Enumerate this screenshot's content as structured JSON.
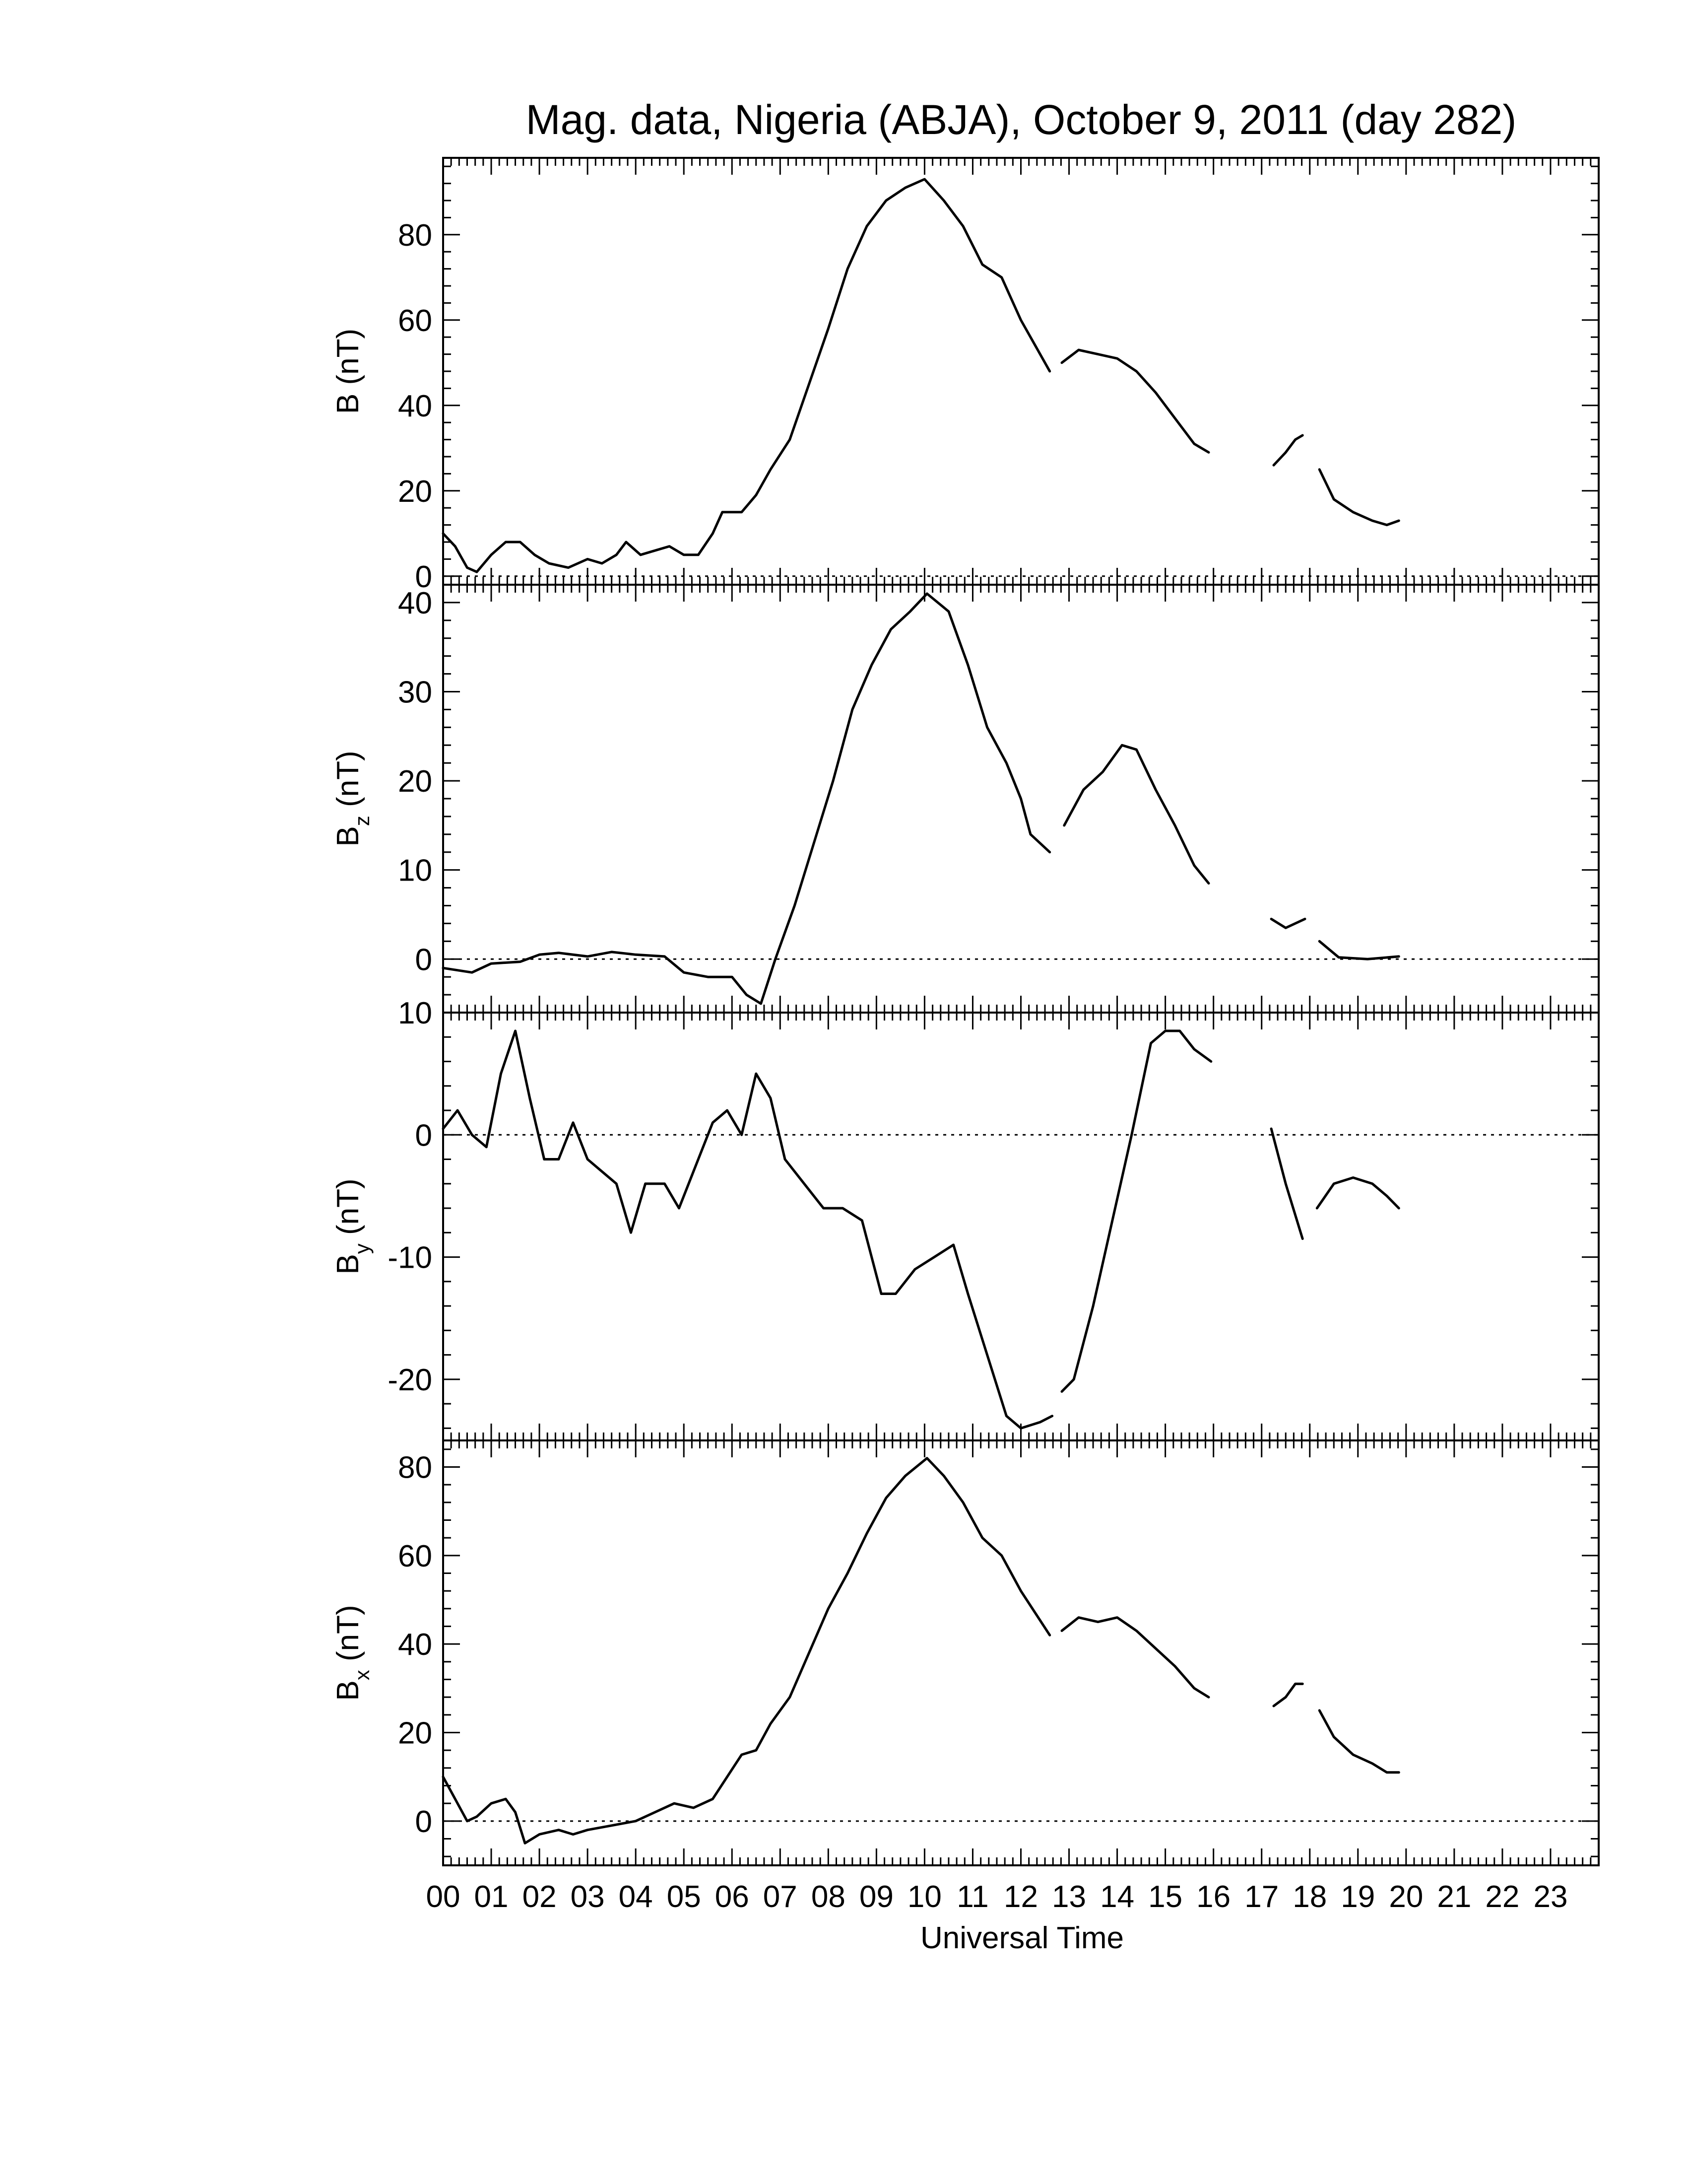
{
  "chart_data": {
    "type": "line",
    "title": "Mag. data, Nigeria (ABJA), October 9, 2011 (day 282)",
    "xlabel": "Universal Time",
    "x_unit": "hours UT",
    "xlim": [
      0,
      24
    ],
    "x_tick_labels": [
      "00",
      "01",
      "02",
      "03",
      "04",
      "05",
      "06",
      "07",
      "08",
      "09",
      "10",
      "11",
      "12",
      "13",
      "14",
      "15",
      "16",
      "17",
      "18",
      "19",
      "20",
      "21",
      "22",
      "23"
    ],
    "panels": [
      {
        "name": "B",
        "ylabel_main": "B",
        "ylabel_sub": "",
        "ylabel_unit": "(nT)",
        "ylim": [
          -2,
          98
        ],
        "yticks": [
          0,
          20,
          40,
          60,
          80
        ],
        "zero_line": true,
        "segments": [
          [
            [
              0,
              10
            ],
            [
              0.25,
              7
            ],
            [
              0.5,
              2
            ],
            [
              0.7,
              1
            ],
            [
              1,
              5
            ],
            [
              1.3,
              8
            ],
            [
              1.6,
              8
            ],
            [
              1.9,
              5
            ],
            [
              2.2,
              3
            ],
            [
              2.6,
              2
            ],
            [
              3,
              4
            ],
            [
              3.3,
              3
            ],
            [
              3.6,
              5
            ],
            [
              3.8,
              8
            ],
            [
              4.1,
              5
            ],
            [
              4.4,
              6
            ],
            [
              4.7,
              7
            ],
            [
              5.0,
              5
            ],
            [
              5.3,
              5
            ],
            [
              5.6,
              10
            ],
            [
              5.8,
              15
            ],
            [
              6.2,
              15
            ],
            [
              6.5,
              19
            ],
            [
              6.8,
              25
            ],
            [
              7.2,
              32
            ],
            [
              7.6,
              45
            ],
            [
              8.0,
              58
            ],
            [
              8.4,
              72
            ],
            [
              8.8,
              82
            ],
            [
              9.2,
              88
            ],
            [
              9.6,
              91
            ],
            [
              10.0,
              93
            ],
            [
              10.4,
              88
            ],
            [
              10.8,
              82
            ],
            [
              11.2,
              73
            ],
            [
              11.6,
              70
            ],
            [
              12.0,
              60
            ],
            [
              12.3,
              54
            ],
            [
              12.6,
              48
            ]
          ],
          [
            [
              12.85,
              50
            ],
            [
              13.2,
              53
            ],
            [
              13.6,
              52
            ],
            [
              14.0,
              51
            ],
            [
              14.4,
              48
            ],
            [
              14.8,
              43
            ],
            [
              15.2,
              37
            ],
            [
              15.6,
              31
            ],
            [
              15.9,
              29
            ]
          ],
          [
            [
              17.25,
              26
            ],
            [
              17.5,
              29
            ],
            [
              17.7,
              32
            ],
            [
              17.85,
              33
            ]
          ],
          [
            [
              18.2,
              25
            ],
            [
              18.5,
              18
            ],
            [
              18.9,
              15
            ],
            [
              19.3,
              13
            ],
            [
              19.6,
              12
            ],
            [
              19.85,
              13
            ]
          ]
        ]
      },
      {
        "name": "Bz",
        "ylabel_main": "B",
        "ylabel_sub": "z",
        "ylabel_unit": "(nT)",
        "ylim": [
          -6,
          42
        ],
        "yticks": [
          0,
          10,
          20,
          30,
          40
        ],
        "zero_line": true,
        "segments": [
          [
            [
              0,
              -1
            ],
            [
              0.6,
              -1.5
            ],
            [
              1.0,
              -0.5
            ],
            [
              1.6,
              -0.3
            ],
            [
              2.0,
              0.5
            ],
            [
              2.4,
              0.7
            ],
            [
              3.0,
              0.3
            ],
            [
              3.5,
              0.8
            ],
            [
              4.0,
              0.5
            ],
            [
              4.6,
              0.3
            ],
            [
              5.0,
              -1.5
            ],
            [
              5.5,
              -2
            ],
            [
              6.0,
              -2
            ],
            [
              6.3,
              -4
            ],
            [
              6.6,
              -5
            ],
            [
              6.9,
              0
            ],
            [
              7.3,
              6
            ],
            [
              7.7,
              13
            ],
            [
              8.1,
              20
            ],
            [
              8.5,
              28
            ],
            [
              8.9,
              33
            ],
            [
              9.3,
              37
            ],
            [
              9.7,
              39
            ],
            [
              10.05,
              41
            ],
            [
              10.5,
              39
            ],
            [
              10.9,
              33
            ],
            [
              11.3,
              26
            ],
            [
              11.7,
              22
            ],
            [
              12.0,
              18
            ],
            [
              12.2,
              14
            ],
            [
              12.6,
              12
            ]
          ],
          [
            [
              12.9,
              15
            ],
            [
              13.3,
              19
            ],
            [
              13.7,
              21
            ],
            [
              14.1,
              24
            ],
            [
              14.4,
              23.5
            ],
            [
              14.8,
              19
            ],
            [
              15.2,
              15
            ],
            [
              15.6,
              10.5
            ],
            [
              15.9,
              8.5
            ]
          ],
          [
            [
              17.2,
              4.5
            ],
            [
              17.5,
              3.5
            ],
            [
              17.9,
              4.5
            ]
          ],
          [
            [
              18.2,
              2
            ],
            [
              18.6,
              0.2
            ],
            [
              19.2,
              0
            ],
            [
              19.85,
              0.3
            ]
          ]
        ]
      },
      {
        "name": "By",
        "ylabel_main": "B",
        "ylabel_sub": "y",
        "ylabel_unit": "(nT)",
        "ylim": [
          -25,
          10
        ],
        "yticks": [
          -20,
          -10,
          0,
          10
        ],
        "zero_line": true,
        "segments": [
          [
            [
              0,
              0.5
            ],
            [
              0.3,
              2
            ],
            [
              0.6,
              0
            ],
            [
              0.9,
              -1
            ],
            [
              1.2,
              5
            ],
            [
              1.5,
              8.5
            ],
            [
              1.8,
              3
            ],
            [
              2.1,
              -2
            ],
            [
              2.4,
              -2
            ],
            [
              2.7,
              1
            ],
            [
              3.0,
              -2
            ],
            [
              3.3,
              -3
            ],
            [
              3.6,
              -4
            ],
            [
              3.9,
              -8
            ],
            [
              4.2,
              -4
            ],
            [
              4.6,
              -4
            ],
            [
              4.9,
              -6
            ],
            [
              5.3,
              -2
            ],
            [
              5.6,
              1
            ],
            [
              5.9,
              2
            ],
            [
              6.2,
              0
            ],
            [
              6.5,
              5
            ],
            [
              6.8,
              3
            ],
            [
              7.1,
              -2
            ],
            [
              7.5,
              -4
            ],
            [
              7.9,
              -6
            ],
            [
              8.3,
              -6
            ],
            [
              8.7,
              -7
            ],
            [
              9.1,
              -13
            ],
            [
              9.4,
              -13
            ],
            [
              9.8,
              -11
            ],
            [
              10.2,
              -10
            ],
            [
              10.6,
              -9
            ],
            [
              10.9,
              -13
            ],
            [
              11.3,
              -18
            ],
            [
              11.7,
              -23
            ],
            [
              12.0,
              -24
            ],
            [
              12.4,
              -23.5
            ],
            [
              12.65,
              -23
            ]
          ],
          [
            [
              12.85,
              -21
            ],
            [
              13.1,
              -20
            ],
            [
              13.5,
              -14
            ],
            [
              13.9,
              -7
            ],
            [
              14.3,
              0
            ],
            [
              14.7,
              7.5
            ],
            [
              15.0,
              8.5
            ],
            [
              15.3,
              8.5
            ],
            [
              15.6,
              7
            ],
            [
              15.95,
              6
            ]
          ],
          [
            [
              17.2,
              0.5
            ],
            [
              17.5,
              -4
            ],
            [
              17.85,
              -8.5
            ]
          ],
          [
            [
              18.15,
              -6
            ],
            [
              18.5,
              -4
            ],
            [
              18.9,
              -3.5
            ],
            [
              19.3,
              -4
            ],
            [
              19.6,
              -5
            ],
            [
              19.85,
              -6
            ]
          ]
        ]
      },
      {
        "name": "Bx",
        "ylabel_main": "B",
        "ylabel_sub": "x",
        "ylabel_unit": "(nT)",
        "ylim": [
          -10,
          86
        ],
        "yticks": [
          0,
          20,
          40,
          60,
          80
        ],
        "zero_line": true,
        "segments": [
          [
            [
              0,
              10
            ],
            [
              0.25,
              5
            ],
            [
              0.5,
              0
            ],
            [
              0.7,
              1
            ],
            [
              1.0,
              4
            ],
            [
              1.3,
              5
            ],
            [
              1.5,
              2
            ],
            [
              1.7,
              -5
            ],
            [
              2.0,
              -3
            ],
            [
              2.4,
              -2
            ],
            [
              2.7,
              -3
            ],
            [
              3.0,
              -2
            ],
            [
              3.5,
              -1
            ],
            [
              4.0,
              0
            ],
            [
              4.4,
              2
            ],
            [
              4.8,
              4
            ],
            [
              5.2,
              3
            ],
            [
              5.6,
              5
            ],
            [
              5.9,
              10
            ],
            [
              6.2,
              15
            ],
            [
              6.5,
              16
            ],
            [
              6.8,
              22
            ],
            [
              7.2,
              28
            ],
            [
              7.6,
              38
            ],
            [
              8.0,
              48
            ],
            [
              8.4,
              56
            ],
            [
              8.8,
              65
            ],
            [
              9.2,
              73
            ],
            [
              9.6,
              78
            ],
            [
              10.05,
              82
            ],
            [
              10.4,
              78
            ],
            [
              10.8,
              72
            ],
            [
              11.2,
              64
            ],
            [
              11.6,
              60
            ],
            [
              12.0,
              52
            ],
            [
              12.3,
              47
            ],
            [
              12.6,
              42
            ]
          ],
          [
            [
              12.85,
              43
            ],
            [
              13.2,
              46
            ],
            [
              13.6,
              45
            ],
            [
              14.0,
              46
            ],
            [
              14.4,
              43
            ],
            [
              14.8,
              39
            ],
            [
              15.2,
              35
            ],
            [
              15.6,
              30
            ],
            [
              15.9,
              28
            ]
          ],
          [
            [
              17.25,
              26
            ],
            [
              17.5,
              28
            ],
            [
              17.7,
              31
            ],
            [
              17.85,
              31
            ]
          ],
          [
            [
              18.2,
              25
            ],
            [
              18.5,
              19
            ],
            [
              18.9,
              15
            ],
            [
              19.3,
              13
            ],
            [
              19.6,
              11
            ],
            [
              19.85,
              11
            ]
          ]
        ]
      }
    ]
  }
}
